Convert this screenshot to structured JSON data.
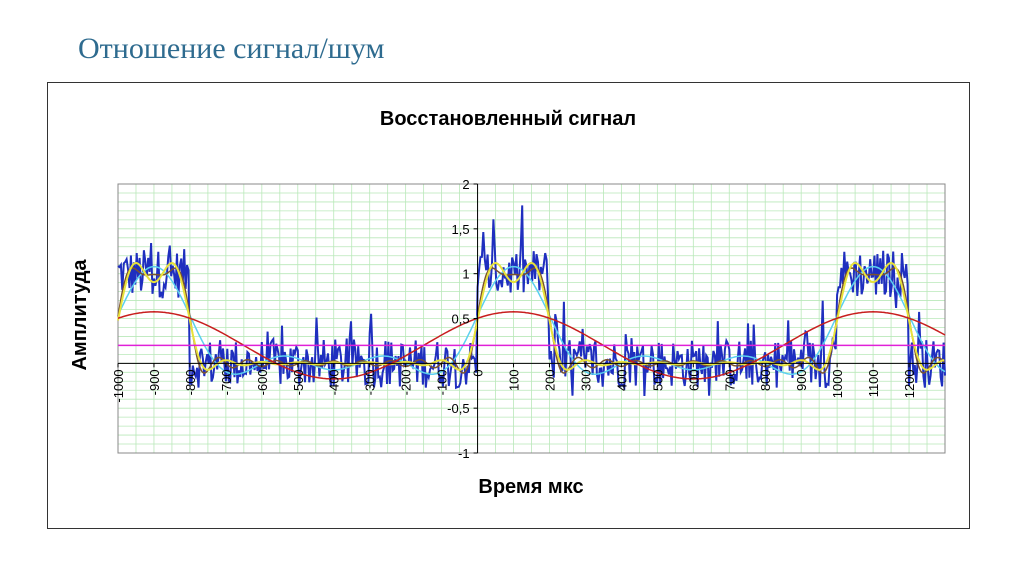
{
  "slide": {
    "title": "Отношение сигнал/шум"
  },
  "colors": {
    "noisy": "#1f2fbf",
    "yellow": "#e8e23a",
    "brown": "#7a5230",
    "cyan": "#5ad0f0",
    "red": "#c81e1e",
    "magenta": "#e020d8",
    "grid": "#b9e8b9"
  },
  "chart_data": {
    "type": "line",
    "title": "Восстановленный сигнал",
    "xlabel": "Время мкс",
    "ylabel": "Амплитуда",
    "xlim": [
      -1000,
      1300
    ],
    "ylim": [
      -1,
      2
    ],
    "y_ticks": [
      2,
      1.5,
      1,
      0.5,
      -0.5,
      -1
    ],
    "y_tick_labels": [
      "2",
      "1,5",
      "1",
      "0,5",
      "-0,5",
      "-1"
    ],
    "x_ticks": [
      -1000,
      -900,
      -800,
      -700,
      -600,
      -500,
      -400,
      -300,
      -200,
      -100,
      0,
      100,
      200,
      300,
      400,
      500,
      600,
      700,
      800,
      900,
      1000,
      1100,
      1200
    ],
    "x_tick_labels": [
      "-1000",
      "-900",
      "-800",
      "-700",
      "-600",
      "-500",
      "-400",
      "-300",
      "-200",
      "-100",
      "0",
      "100",
      "200",
      "300",
      "400",
      "500",
      "600",
      "700",
      "800",
      "900",
      "1000",
      "1100",
      "1200"
    ],
    "grid": true,
    "legend": "none",
    "signal": {
      "period": 1000,
      "pulse_start": 0,
      "pulse_end": 200,
      "high": 1,
      "low": 0,
      "mean": 0.2
    },
    "series": [
      {
        "key": "noisy",
        "note": "noisy received pulse train, amplitude approx -0.5 to 1.5"
      },
      {
        "key": "yellow",
        "note": "reconstruction with many harmonics"
      },
      {
        "key": "brown",
        "note": "reconstruction, high harmonics"
      },
      {
        "key": "cyan",
        "note": "reconstruction, few harmonics"
      },
      {
        "key": "red",
        "note": "first harmonic, amplitude approx 0.37 about 0.2"
      },
      {
        "key": "magenta",
        "note": "constant component 0.2"
      }
    ]
  }
}
